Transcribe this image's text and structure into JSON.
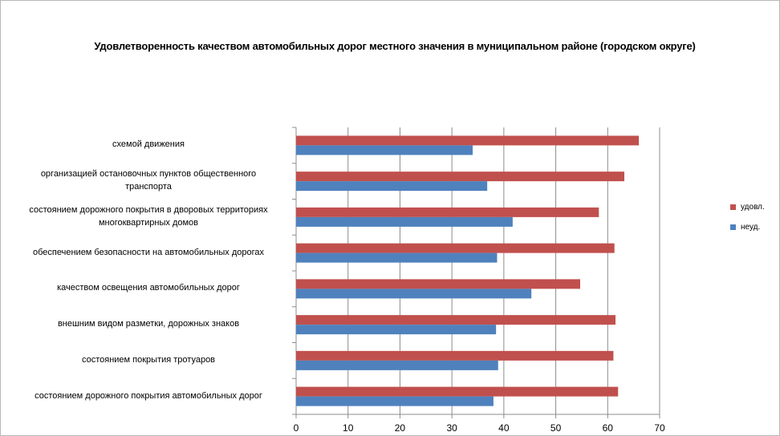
{
  "chart_data": {
    "type": "bar",
    "orientation": "horizontal",
    "title": "Удовлетворенность качеством автомобильных дорог местного значения в муниципальном районе (городском округе)",
    "categories": [
      "схемой движения",
      "организацией остановочных пунктов общественного транспорта",
      "состоянием дорожного покрытия в дворовых территориях многоквартирных домов",
      "обеспечением  безопасности на автомобильных дорогах",
      "качеством  освещения  автомобильных дорог",
      "внешним  видом разметки, дорожных знаков",
      "состоянием  покрытия тротуаров",
      "состоянием дорожного покрытия автомобильных дорог"
    ],
    "category_lines": [
      [
        "схемой движения"
      ],
      [
        "организацией остановочных пунктов общественного",
        "транспорта"
      ],
      [
        "состоянием дорожного покрытия в дворовых территориях",
        "многоквартирных домов"
      ],
      [
        "обеспечением  безопасности на автомобильных дорогах"
      ],
      [
        "качеством  освещения  автомобильных дорог"
      ],
      [
        "внешним  видом разметки, дорожных знаков"
      ],
      [
        "состоянием  покрытия тротуаров"
      ],
      [
        "состоянием дорожного покрытия автомобильных дорог"
      ]
    ],
    "series": [
      {
        "name": "удовл.",
        "color": "#c0504d",
        "values": [
          66,
          63.2,
          58.3,
          61.3,
          54.7,
          61.5,
          61.1,
          62
        ]
      },
      {
        "name": "неуд.",
        "color": "#4f81bd",
        "values": [
          34,
          36.8,
          41.7,
          38.7,
          45.3,
          38.5,
          38.9,
          38
        ]
      }
    ],
    "xlim": [
      0,
      70
    ],
    "xticks": [
      0,
      10,
      20,
      30,
      40,
      50,
      60,
      70
    ],
    "grid": true,
    "legend": "right"
  }
}
